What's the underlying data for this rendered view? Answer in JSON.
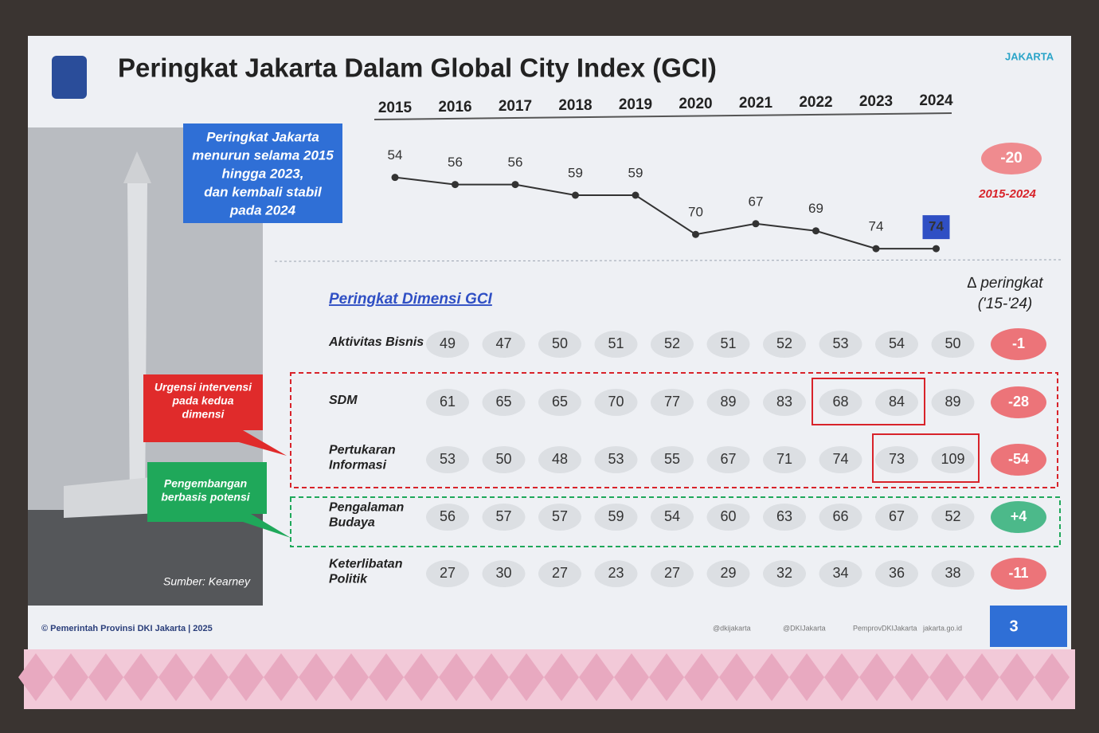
{
  "chart_data": {
    "type": "line",
    "title": "Peringkat Jakarta Dalam Global City Index (GCI)",
    "categories": [
      "2015",
      "2016",
      "2017",
      "2018",
      "2019",
      "2020",
      "2021",
      "2022",
      "2023",
      "2024"
    ],
    "values": [
      54,
      56,
      56,
      59,
      59,
      70,
      67,
      69,
      74,
      74
    ],
    "color": "#333333",
    "ylim": [
      78,
      40
    ],
    "change_value": "-20",
    "change_period": "2015-2024"
  },
  "callout": [
    "Peringkat Jakarta",
    "menurun selama 2015",
    "hingga 2023,",
    "dan kembali stabil",
    "pada 2024"
  ],
  "table": {
    "title": "Peringkat Dimensi GCI",
    "delta_header": [
      "∆ peringkat",
      "('15-'24)"
    ],
    "rows": [
      {
        "name": [
          "Aktivitas Bisnis"
        ],
        "values": [
          49,
          47,
          50,
          51,
          52,
          51,
          52,
          53,
          54,
          50
        ],
        "delta": "-1"
      },
      {
        "name": [
          "SDM"
        ],
        "values": [
          61,
          65,
          65,
          70,
          77,
          89,
          83,
          68,
          84,
          89
        ],
        "delta": "-28"
      },
      {
        "name": [
          "Pertukaran",
          "Informasi"
        ],
        "values": [
          53,
          50,
          48,
          53,
          55,
          67,
          71,
          74,
          73,
          109
        ],
        "delta": "-54"
      },
      {
        "name": [
          "Pengalaman",
          "Budaya"
        ],
        "values": [
          56,
          57,
          57,
          59,
          54,
          60,
          63,
          66,
          67,
          52
        ],
        "delta": "+4"
      },
      {
        "name": [
          "Keterlibatan",
          "Politik"
        ],
        "values": [
          27,
          30,
          27,
          23,
          27,
          29,
          32,
          34,
          36,
          38
        ],
        "delta": "-11"
      }
    ]
  },
  "notes": {
    "red": [
      "Urgensi intervensi",
      "pada kedua",
      "dimensi"
    ],
    "green": [
      "Pengembangan",
      "berbasis potensi"
    ],
    "source": "Sumber: Kearney"
  },
  "footer": {
    "copyright": "© Pemerintah Provinsi DKI Jakarta | 2025",
    "socials": [
      "@dkijakarta",
      "@DKIJakarta",
      "PemprovDKIJakarta",
      "jakarta.go.id"
    ],
    "page": "3",
    "logo": "JAKARTA"
  }
}
